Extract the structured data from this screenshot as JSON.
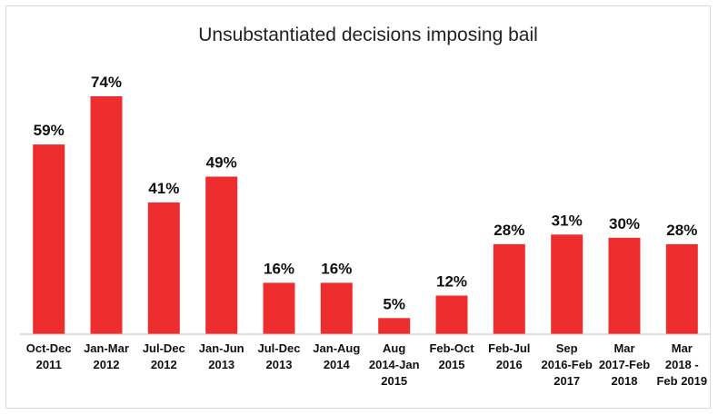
{
  "chart_data": {
    "type": "bar",
    "title": "Unsubstantiated decisions imposing bail",
    "xlabel": "",
    "ylabel": "",
    "unit": "%",
    "ylim": [
      0,
      80
    ],
    "grid": false,
    "legend": "none",
    "bar_color": "#ee2e2e",
    "categories": [
      [
        "Oct-Dec",
        "2011"
      ],
      [
        "Jan-Mar",
        "2012"
      ],
      [
        "Jul-Dec",
        "2012"
      ],
      [
        "Jan-Jun",
        "2013"
      ],
      [
        "Jul-Dec",
        "2013"
      ],
      [
        "Jan-Aug",
        "2014"
      ],
      [
        "Aug",
        "2014-Jan",
        "2015"
      ],
      [
        "Feb-Oct",
        "2015"
      ],
      [
        "Feb-Jul",
        "2016"
      ],
      [
        "Sep",
        "2016-Feb",
        "2017"
      ],
      [
        "Mar",
        "2017-Feb",
        "2018"
      ],
      [
        "Mar",
        "2018 -",
        "Feb 2019"
      ]
    ],
    "values": [
      59,
      74,
      41,
      49,
      16,
      16,
      5,
      12,
      28,
      31,
      30,
      28
    ],
    "labels": [
      "59%",
      "74%",
      "41%",
      "49%",
      "16%",
      "16%",
      "5%",
      "12%",
      "28%",
      "31%",
      "30%",
      "28%"
    ]
  }
}
